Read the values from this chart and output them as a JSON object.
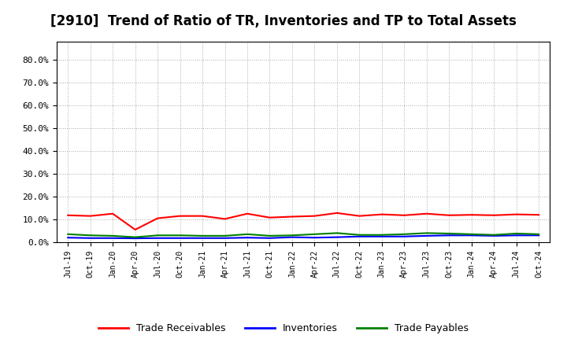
{
  "title": "[2910]  Trend of Ratio of TR, Inventories and TP to Total Assets",
  "title_fontsize": 12,
  "background_color": "#ffffff",
  "grid_color": "#aaaaaa",
  "xlabels": [
    "Jul-19",
    "Oct-19",
    "Jan-20",
    "Apr-20",
    "Jul-20",
    "Oct-20",
    "Jan-21",
    "Apr-21",
    "Jul-21",
    "Oct-21",
    "Jan-22",
    "Apr-22",
    "Jul-22",
    "Oct-22",
    "Jan-23",
    "Apr-23",
    "Jul-23",
    "Oct-23",
    "Jan-24",
    "Apr-24",
    "Jul-24",
    "Oct-24"
  ],
  "trade_receivables": [
    0.118,
    0.115,
    0.125,
    0.055,
    0.105,
    0.115,
    0.115,
    0.102,
    0.125,
    0.108,
    0.112,
    0.115,
    0.128,
    0.115,
    0.122,
    0.118,
    0.125,
    0.118,
    0.12,
    0.118,
    0.122,
    0.12
  ],
  "inventories": [
    0.02,
    0.018,
    0.018,
    0.017,
    0.018,
    0.018,
    0.018,
    0.018,
    0.02,
    0.018,
    0.022,
    0.02,
    0.022,
    0.025,
    0.025,
    0.025,
    0.028,
    0.03,
    0.03,
    0.028,
    0.03,
    0.03
  ],
  "trade_payables": [
    0.035,
    0.03,
    0.028,
    0.022,
    0.03,
    0.03,
    0.028,
    0.028,
    0.035,
    0.028,
    0.03,
    0.035,
    0.04,
    0.032,
    0.032,
    0.035,
    0.04,
    0.038,
    0.035,
    0.032,
    0.038,
    0.035
  ],
  "tr_color": "#ff0000",
  "inv_color": "#0000ff",
  "tp_color": "#008000",
  "tr_label": "Trade Receivables",
  "inv_label": "Inventories",
  "tp_label": "Trade Payables",
  "ylim": [
    0.0,
    0.88
  ],
  "yticks": [
    0.0,
    0.1,
    0.2,
    0.3,
    0.4,
    0.5,
    0.6,
    0.7,
    0.8
  ],
  "ytick_labels": [
    "0.0%",
    "10.0%",
    "20.0%",
    "30.0%",
    "40.0%",
    "50.0%",
    "60.0%",
    "70.0%",
    "80.0%"
  ]
}
